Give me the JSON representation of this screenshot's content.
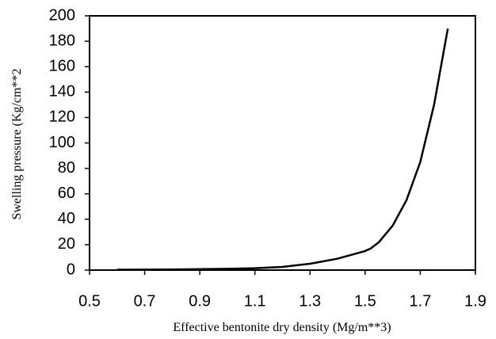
{
  "chart_data": {
    "type": "line",
    "x_label": "Effective bentonite dry density (Mg/m**3)",
    "y_label": "Swelling pressure (Kg/cm**2",
    "x": [
      0.6,
      0.8,
      1.0,
      1.1,
      1.2,
      1.3,
      1.4,
      1.5,
      1.52,
      1.55,
      1.6,
      1.65,
      1.7,
      1.75,
      1.8
    ],
    "series": [
      {
        "name": "Swelling pressure",
        "color": "#000000",
        "values": [
          0.3,
          0.5,
          1,
          1.5,
          2.5,
          5,
          9,
          15,
          17,
          22,
          35,
          55,
          85,
          130,
          190
        ]
      }
    ],
    "xlim": [
      0.5,
      1.9
    ],
    "xticks": [
      0.5,
      0.7,
      0.9,
      1.1,
      1.3,
      1.5,
      1.7,
      1.9
    ],
    "ylim": [
      0,
      200
    ],
    "yticks": [
      0,
      20,
      40,
      60,
      80,
      100,
      120,
      140,
      160,
      180,
      200
    ],
    "grid": false
  }
}
